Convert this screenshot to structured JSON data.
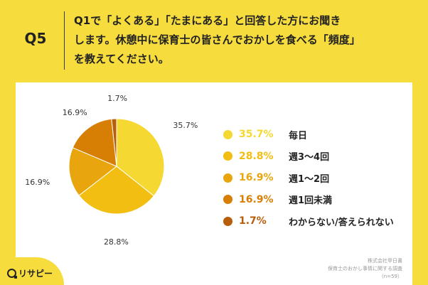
{
  "question": {
    "number": "Q5",
    "lines": [
      "Q1で「よくある」「たまにある」と回答した方にお聞き",
      "します。休憩中に保育士の皆さんでおかしを食べる「頻度」",
      "を教えてください。"
    ]
  },
  "chart_data": {
    "type": "pie",
    "start_angle_deg": 0,
    "direction": "clockwise",
    "slices": [
      {
        "label": "毎日",
        "value": 35.7,
        "display": "35.7%",
        "color": "#F6D832"
      },
      {
        "label": "週3〜4回",
        "value": 28.8,
        "display": "28.8%",
        "color": "#F2BE12"
      },
      {
        "label": "週1〜2回",
        "value": 16.9,
        "display": "16.9%",
        "color": "#E8A50E"
      },
      {
        "label": "週1回未満",
        "value": 16.9,
        "display": "16.9%",
        "color": "#D77E04"
      },
      {
        "label": "わからない/答えられない",
        "value": 1.7,
        "display": "1.7%",
        "color": "#B85E0A"
      }
    ],
    "legend_position": "right"
  },
  "source": {
    "lines": [
      "株式会社甲日書",
      "保育士のおかし事情に関する調査",
      "（n=59）"
    ]
  },
  "logo": {
    "text": "リサピー"
  }
}
